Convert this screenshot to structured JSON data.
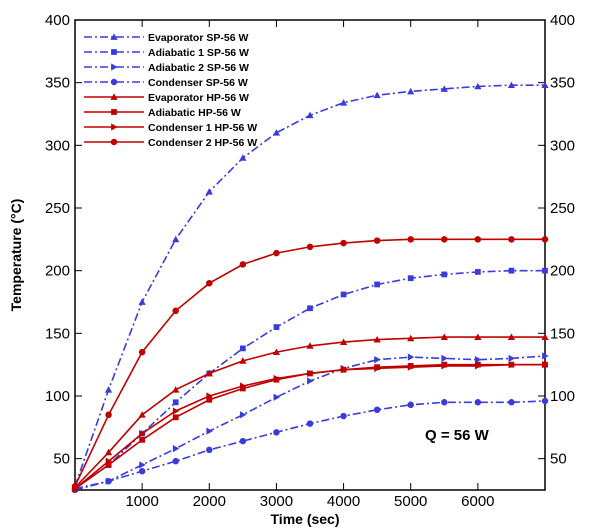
{
  "chart_data": {
    "type": "line",
    "xlabel": "Time (sec)",
    "ylabel": "Temperature (°C)",
    "xlim": [
      0,
      7000
    ],
    "ylim": [
      25,
      400
    ],
    "x_ticks": [
      1000,
      2000,
      3000,
      4000,
      5000,
      6000
    ],
    "y_ticks": [
      50,
      100,
      150,
      200,
      250,
      300,
      350,
      400
    ],
    "grid": false,
    "legend_position": "top-left",
    "annotation": "Q = 56 W",
    "series": [
      {
        "name": "Evaporator SP-56 W",
        "color": "#3b3bdc",
        "dash": "dashdot",
        "marker": "triangle-up",
        "x": [
          0,
          500,
          1000,
          1500,
          2000,
          2500,
          3000,
          3500,
          4000,
          4500,
          5000,
          5500,
          6000,
          6500,
          7000
        ],
        "y": [
          28,
          105,
          175,
          225,
          263,
          290,
          310,
          324,
          334,
          340,
          343,
          345,
          347,
          348,
          348
        ]
      },
      {
        "name": "Adiabatic 1 SP-56 W",
        "color": "#3b3bdc",
        "dash": "dashdot",
        "marker": "square",
        "x": [
          0,
          500,
          1000,
          1500,
          2000,
          2500,
          3000,
          3500,
          4000,
          4500,
          5000,
          5500,
          6000,
          6500,
          7000
        ],
        "y": [
          26,
          45,
          70,
          95,
          118,
          138,
          155,
          170,
          181,
          189,
          194,
          197,
          199,
          200,
          200
        ]
      },
      {
        "name": "Adiabatic 2 SP-56 W",
        "color": "#3b3bdc",
        "dash": "dashdot",
        "marker": "triangle-right",
        "x": [
          0,
          500,
          1000,
          1500,
          2000,
          2500,
          3000,
          3500,
          4000,
          4500,
          5000,
          5500,
          6000,
          6500,
          7000
        ],
        "y": [
          26,
          32,
          45,
          58,
          72,
          85,
          99,
          112,
          122,
          129,
          131,
          130,
          129,
          130,
          132
        ]
      },
      {
        "name": "Condenser SP-56 W",
        "color": "#3b3bdc",
        "dash": "dashdot",
        "marker": "circle",
        "x": [
          0,
          500,
          1000,
          1500,
          2000,
          2500,
          3000,
          3500,
          4000,
          4500,
          5000,
          5500,
          6000,
          6500,
          7000
        ],
        "y": [
          25,
          32,
          40,
          48,
          57,
          64,
          71,
          78,
          84,
          89,
          93,
          95,
          95,
          95,
          96
        ]
      },
      {
        "name": "Evaporator HP-56 W",
        "color": "#c00000",
        "dash": "solid",
        "marker": "triangle-up",
        "x": [
          0,
          500,
          1000,
          1500,
          2000,
          2500,
          3000,
          3500,
          4000,
          4500,
          5000,
          5500,
          6000,
          6500,
          7000
        ],
        "y": [
          27,
          55,
          85,
          105,
          118,
          128,
          135,
          140,
          143,
          145,
          146,
          147,
          147,
          147,
          147
        ]
      },
      {
        "name": "Adiabatic HP-56 W",
        "color": "#c00000",
        "dash": "solid",
        "marker": "square",
        "x": [
          0,
          500,
          1000,
          1500,
          2000,
          2500,
          3000,
          3500,
          4000,
          4500,
          5000,
          5500,
          6000,
          6500,
          7000
        ],
        "y": [
          26,
          45,
          65,
          83,
          97,
          106,
          113,
          118,
          121,
          123,
          124,
          125,
          125,
          125,
          125
        ]
      },
      {
        "name": "Condenser 1 HP-56 W",
        "color": "#c00000",
        "dash": "solid",
        "marker": "triangle-right",
        "x": [
          0,
          500,
          1000,
          1500,
          2000,
          2500,
          3000,
          3500,
          4000,
          4500,
          5000,
          5500,
          6000,
          6500,
          7000
        ],
        "y": [
          26,
          48,
          70,
          88,
          100,
          108,
          114,
          118,
          121,
          122,
          123,
          124,
          124,
          125,
          125
        ]
      },
      {
        "name": "Condenser 2 HP-56 W",
        "color": "#c00000",
        "dash": "solid",
        "marker": "circle",
        "x": [
          0,
          500,
          1000,
          1500,
          2000,
          2500,
          3000,
          3500,
          4000,
          4500,
          5000,
          5500,
          6000,
          6500,
          7000
        ],
        "y": [
          28,
          85,
          135,
          168,
          190,
          205,
          214,
          219,
          222,
          224,
          225,
          225,
          225,
          225,
          225
        ]
      }
    ]
  }
}
